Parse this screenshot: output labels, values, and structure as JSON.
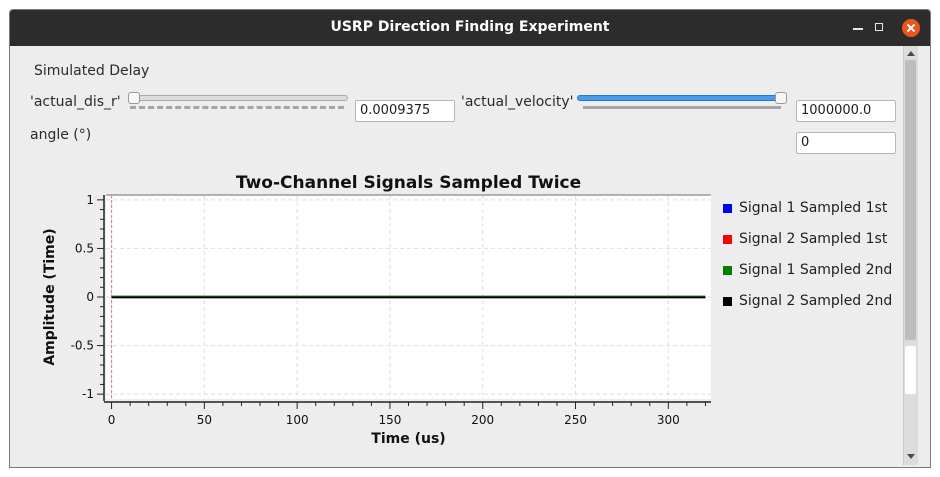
{
  "window": {
    "title": "USRP Direction Finding Experiment"
  },
  "controls": {
    "section_label": "Simulated Delay",
    "dis_label": "'actual_dis_r'",
    "dis_value": "0.0009375",
    "vel_label": "'actual_velocity'",
    "vel_value": "1000000.0",
    "angle_label": "angle (°)",
    "angle_value": "0"
  },
  "chart_data": {
    "type": "line",
    "title": "Two-Channel Signals Sampled Twice",
    "xlabel": "Time (us)",
    "ylabel": "Amplitude (Time)",
    "xlim": [
      -3,
      323
    ],
    "ylim": [
      -1.05,
      1.05
    ],
    "x_ticks": [
      0,
      50,
      100,
      150,
      200,
      250,
      300
    ],
    "y_ticks": [
      1,
      0.5,
      0,
      -0.5,
      -1
    ],
    "grid": true,
    "legend_position": "right",
    "marker_x": 0,
    "series": [
      {
        "name": "Signal 1 Sampled 1st",
        "color": "#0000ff",
        "x": [
          0,
          320
        ],
        "y": [
          0,
          0
        ]
      },
      {
        "name": "Signal 2 Sampled 1st",
        "color": "#ff0000",
        "x": [
          0,
          320
        ],
        "y": [
          0,
          0
        ]
      },
      {
        "name": "Signal 1 Sampled 2nd",
        "color": "#008000",
        "x": [
          0,
          320
        ],
        "y": [
          0,
          0
        ]
      },
      {
        "name": "Signal 2 Sampled 2nd",
        "color": "#000000",
        "x": [
          0,
          320
        ],
        "y": [
          0,
          0
        ]
      }
    ]
  }
}
